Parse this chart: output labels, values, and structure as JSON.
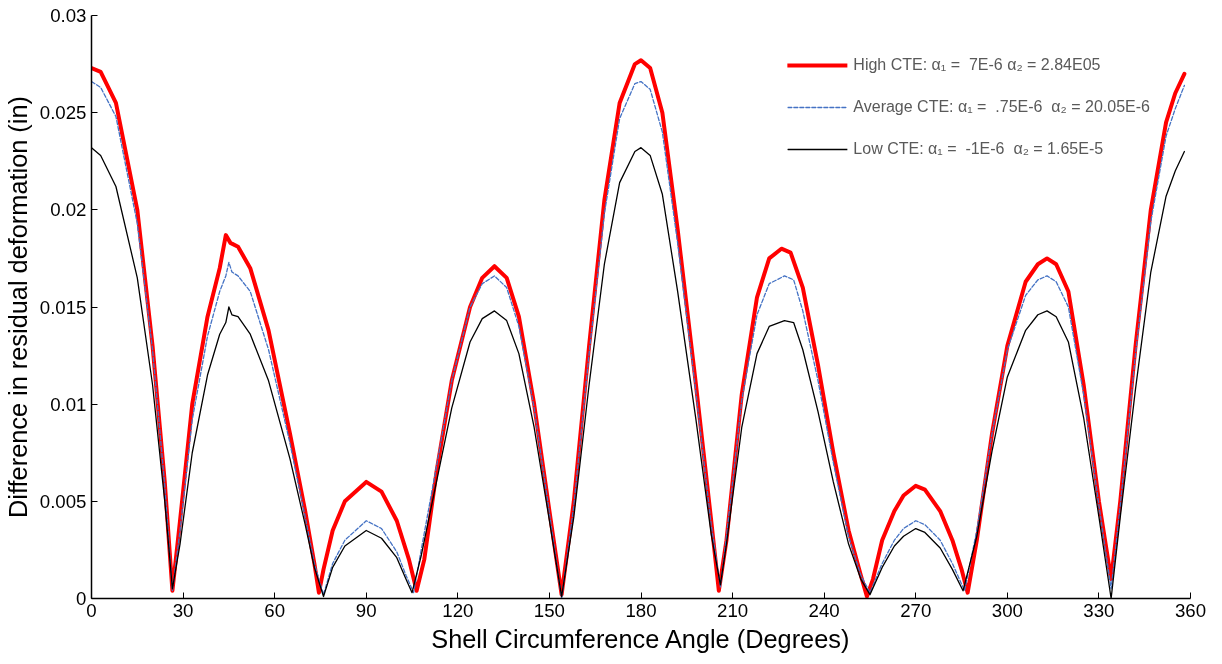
{
  "chart_data": {
    "type": "line",
    "xlabel": "Shell Circumference Angle (Degrees)",
    "ylabel": "Difference in residual deformation (in)",
    "xlim": [
      0,
      360
    ],
    "xticks": [
      0,
      30,
      60,
      90,
      120,
      150,
      180,
      210,
      240,
      270,
      300,
      330,
      360
    ],
    "ylim": [
      0,
      0.03
    ],
    "yticks": [
      0,
      0.005,
      0.01,
      0.015,
      0.02,
      0.025,
      0.03
    ],
    "legend": "top right",
    "marker": "none",
    "series": [
      {
        "name": "High CTE: α₁ =  7E-6 α₂ = 2.84E05",
        "color": "#ff0000",
        "line_style": "solid",
        "x": [
          0,
          3,
          8,
          15,
          20,
          24,
          26.5,
          29,
          33,
          38,
          42,
          44,
          45.5,
          48,
          52,
          58,
          65,
          70,
          73,
          74.5,
          76,
          79,
          83,
          90,
          95,
          100,
          104,
          106.5,
          109,
          113,
          118,
          124,
          128,
          132,
          136,
          140,
          145,
          150,
          154,
          158,
          163,
          168,
          173,
          178,
          180,
          183,
          187,
          192,
          198,
          203,
          205.5,
          208,
          213,
          218,
          222,
          226,
          229,
          233,
          238,
          243,
          248,
          252,
          254,
          256,
          259,
          263,
          266,
          270,
          273,
          278,
          282,
          285,
          287,
          290,
          295,
          300,
          306,
          310,
          313,
          316,
          320,
          325,
          330,
          334,
          337,
          342,
          347,
          352,
          355,
          358
        ],
        "values": [
          0.0273,
          0.0271,
          0.0255,
          0.02,
          0.013,
          0.006,
          0.0004,
          0.004,
          0.01,
          0.0145,
          0.017,
          0.0187,
          0.0183,
          0.0181,
          0.017,
          0.0138,
          0.0085,
          0.0045,
          0.0018,
          0.0003,
          0.0015,
          0.0035,
          0.005,
          0.006,
          0.0055,
          0.004,
          0.002,
          0.0004,
          0.002,
          0.0065,
          0.0112,
          0.015,
          0.0165,
          0.0171,
          0.0165,
          0.0145,
          0.01,
          0.0045,
          0.0002,
          0.005,
          0.013,
          0.0205,
          0.0255,
          0.0275,
          0.0277,
          0.0273,
          0.025,
          0.019,
          0.011,
          0.004,
          0.0004,
          0.003,
          0.0105,
          0.0155,
          0.0175,
          0.018,
          0.0178,
          0.016,
          0.012,
          0.0075,
          0.0035,
          0.0012,
          0.0001,
          0.001,
          0.003,
          0.0045,
          0.0053,
          0.0058,
          0.0056,
          0.0045,
          0.003,
          0.0015,
          0.0003,
          0.003,
          0.0085,
          0.013,
          0.0163,
          0.0172,
          0.0175,
          0.0172,
          0.0158,
          0.011,
          0.005,
          0.001,
          0.005,
          0.013,
          0.02,
          0.0245,
          0.026,
          0.027
        ]
      },
      {
        "name": "Average CTE: α₁ =  .75E-6  α₂ = 20.05E-6",
        "color": "#4472c4",
        "line_style": "dashed",
        "x": [
          0,
          3,
          8,
          15,
          20,
          24,
          26.5,
          29,
          33,
          38,
          42,
          44,
          45,
          46,
          48,
          52,
          58,
          65,
          70,
          73,
          76,
          79,
          83,
          90,
          95,
          100,
          103,
          105.5,
          108,
          113,
          118,
          124,
          128,
          132,
          136,
          140,
          145,
          150,
          154,
          158,
          163,
          168,
          173,
          178,
          180,
          183,
          187,
          192,
          198,
          203,
          206,
          208,
          213,
          218,
          222,
          227,
          230,
          233,
          238,
          243,
          248,
          252,
          255,
          259,
          263,
          266,
          270,
          273,
          278,
          282,
          286,
          290,
          295,
          300,
          306,
          310,
          313,
          316,
          320,
          325,
          330,
          334,
          337,
          342,
          347,
          352,
          355,
          358
        ],
        "values": [
          0.0266,
          0.0263,
          0.0248,
          0.0193,
          0.0128,
          0.0058,
          0.0004,
          0.0035,
          0.0092,
          0.0135,
          0.0158,
          0.0166,
          0.0173,
          0.0168,
          0.0166,
          0.0158,
          0.0128,
          0.008,
          0.0042,
          0.0018,
          0.0002,
          0.0018,
          0.003,
          0.004,
          0.0036,
          0.0024,
          0.0012,
          0.0003,
          0.0025,
          0.0068,
          0.0112,
          0.015,
          0.0162,
          0.0166,
          0.016,
          0.014,
          0.0098,
          0.0044,
          0.0,
          0.0048,
          0.0126,
          0.0198,
          0.0247,
          0.0265,
          0.0266,
          0.0262,
          0.024,
          0.0183,
          0.0106,
          0.0038,
          0.0006,
          0.0032,
          0.0102,
          0.0146,
          0.0162,
          0.0166,
          0.0164,
          0.0148,
          0.0112,
          0.007,
          0.0032,
          0.0012,
          0.0003,
          0.0018,
          0.003,
          0.0036,
          0.004,
          0.0038,
          0.003,
          0.0018,
          0.0004,
          0.0035,
          0.0085,
          0.0128,
          0.0156,
          0.0164,
          0.0166,
          0.0163,
          0.015,
          0.0105,
          0.0048,
          0.0005,
          0.0048,
          0.0126,
          0.0194,
          0.0238,
          0.0252,
          0.0264
        ]
      },
      {
        "name": "Low CTE: α₁ =  -1E-6  α₂ = 1.65E-5",
        "color": "#000000",
        "line_style": "solid",
        "x": [
          0,
          3,
          8,
          15,
          20,
          24,
          26.5,
          29,
          33,
          38,
          42,
          44,
          45,
          46,
          48,
          52,
          58,
          65,
          70,
          73,
          76,
          79,
          83,
          90,
          95,
          100,
          103,
          105,
          108,
          113,
          118,
          124,
          128,
          132,
          136,
          140,
          145,
          150,
          154,
          158,
          163,
          168,
          173,
          178,
          180,
          183,
          187,
          192,
          198,
          203,
          206,
          208,
          213,
          218,
          222,
          227,
          230,
          233,
          238,
          243,
          248,
          252,
          255,
          259,
          263,
          266,
          270,
          273,
          278,
          282,
          285.5,
          290,
          295,
          300,
          306,
          310,
          313,
          316,
          320,
          325,
          330,
          334,
          337,
          342,
          347,
          352,
          355,
          358
        ],
        "values": [
          0.0232,
          0.0228,
          0.0212,
          0.0165,
          0.011,
          0.005,
          0.0005,
          0.0028,
          0.0075,
          0.0115,
          0.0136,
          0.0142,
          0.015,
          0.0146,
          0.0145,
          0.0136,
          0.0112,
          0.0072,
          0.0038,
          0.0016,
          0.0001,
          0.0016,
          0.0027,
          0.0035,
          0.0031,
          0.0021,
          0.001,
          0.0003,
          0.0022,
          0.006,
          0.0098,
          0.0132,
          0.0144,
          0.0148,
          0.0143,
          0.0126,
          0.0088,
          0.004,
          0.0001,
          0.0042,
          0.011,
          0.0172,
          0.0214,
          0.023,
          0.0232,
          0.0228,
          0.0208,
          0.0158,
          0.0092,
          0.0033,
          0.0007,
          0.0028,
          0.0088,
          0.0126,
          0.014,
          0.0143,
          0.0142,
          0.0128,
          0.0096,
          0.006,
          0.0028,
          0.001,
          0.0002,
          0.0016,
          0.0027,
          0.0032,
          0.0036,
          0.0034,
          0.0026,
          0.0015,
          0.0004,
          0.0032,
          0.0076,
          0.0114,
          0.0138,
          0.0146,
          0.0148,
          0.0145,
          0.0132,
          0.0093,
          0.0042,
          0.0,
          0.0042,
          0.0108,
          0.0168,
          0.0207,
          0.022,
          0.023
        ]
      }
    ]
  }
}
